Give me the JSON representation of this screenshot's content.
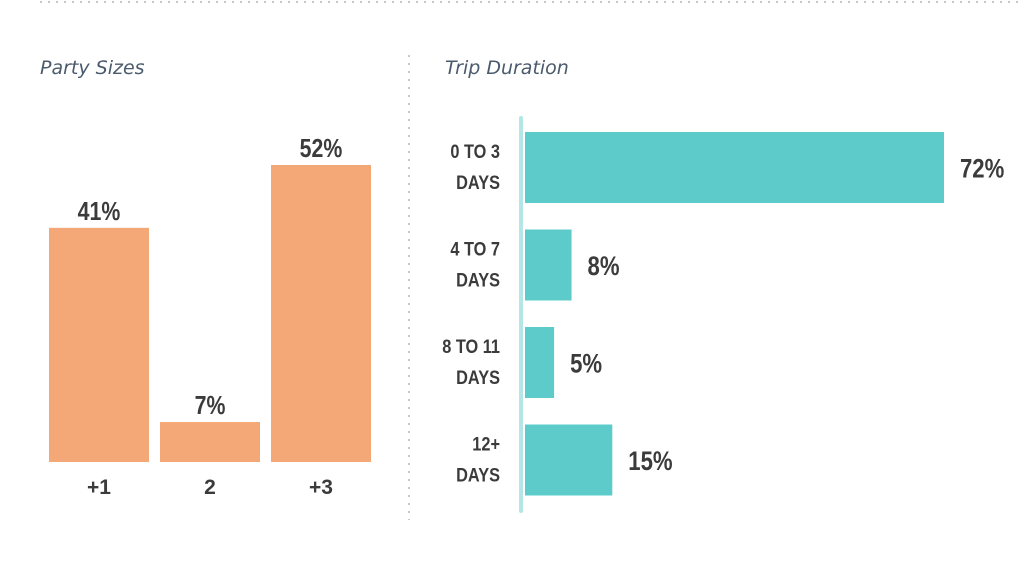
{
  "colors": {
    "party_bar": "#f4a877",
    "duration_bar": "#5ecbcb",
    "axis_line": "#b5e6e6",
    "text_dark": "#3b3b3b",
    "title_color": "#4a5b6d",
    "divider": "#c9c9c9"
  },
  "chart_data": [
    {
      "type": "bar",
      "orientation": "vertical",
      "title": "Party Sizes",
      "categories": [
        "+1",
        "2",
        "+3"
      ],
      "values": [
        41,
        7,
        52
      ],
      "value_labels": [
        "41%",
        "7%",
        "52%"
      ],
      "unit": "%",
      "ylim": [
        0,
        60
      ],
      "xlabel": "",
      "ylabel": "",
      "grid": false,
      "legend": "none"
    },
    {
      "type": "bar",
      "orientation": "horizontal",
      "title": "Trip Duration",
      "categories": [
        [
          "0 TO 3",
          "DAYS"
        ],
        [
          "4 TO 7",
          "DAYS"
        ],
        [
          "8 TO 11",
          "DAYS"
        ],
        [
          "12+",
          "DAYS"
        ]
      ],
      "values": [
        72,
        8,
        5,
        15
      ],
      "value_labels": [
        "72%",
        "8%",
        "5%",
        "15%"
      ],
      "unit": "%",
      "xlim": [
        0,
        72
      ],
      "xlabel": "",
      "ylabel": "",
      "grid": false,
      "legend": "none"
    }
  ]
}
